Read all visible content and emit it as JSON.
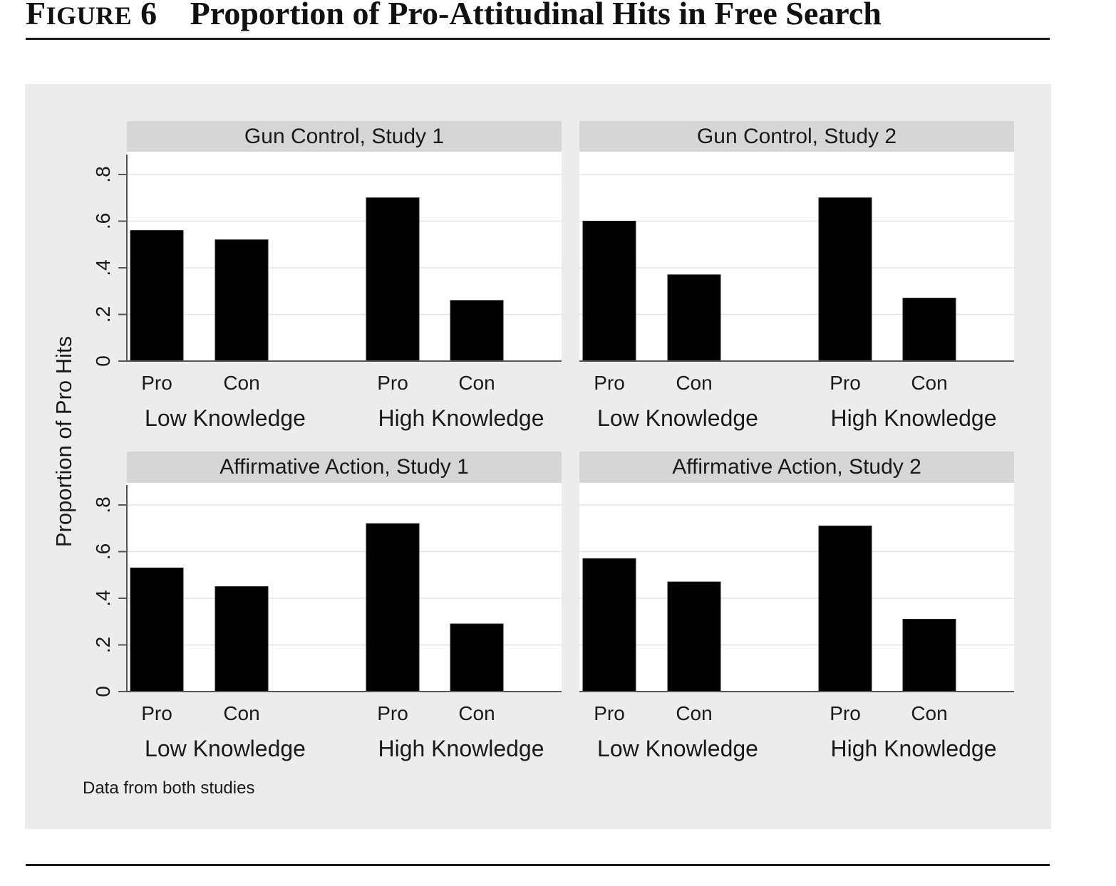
{
  "figure": {
    "label": "Figure 6",
    "title": "Proportion of Pro-Attitudinal Hits in Free Search"
  },
  "colors": {
    "plot_background": "#ececec",
    "panel_header": "#d6d6d6",
    "bar": "#000000",
    "text": "#1a1a1a"
  },
  "chart_data": {
    "type": "bar",
    "ylabel": "Proportion of Pro Hits",
    "ylim": [
      0,
      0.8
    ],
    "yticks": [
      0,
      0.2,
      0.4,
      0.6,
      0.8
    ],
    "ytick_labels": [
      "0",
      ".2",
      ".4",
      ".6",
      ".8"
    ],
    "grid": true,
    "note": "Data from both studies",
    "groups": [
      "Low Knowledge",
      "High Knowledge"
    ],
    "categories": [
      "Pro",
      "Con"
    ],
    "panels": [
      {
        "title": "Gun Control, Study 1",
        "values": [
          [
            0.56,
            0.52
          ],
          [
            0.7,
            0.26
          ]
        ]
      },
      {
        "title": "Gun Control, Study 2",
        "values": [
          [
            0.6,
            0.37
          ],
          [
            0.7,
            0.27
          ]
        ]
      },
      {
        "title": "Affirmative Action, Study 1",
        "values": [
          [
            0.53,
            0.45
          ],
          [
            0.72,
            0.29
          ]
        ]
      },
      {
        "title": "Affirmative Action, Study 2",
        "values": [
          [
            0.57,
            0.47
          ],
          [
            0.71,
            0.31
          ]
        ]
      }
    ]
  }
}
